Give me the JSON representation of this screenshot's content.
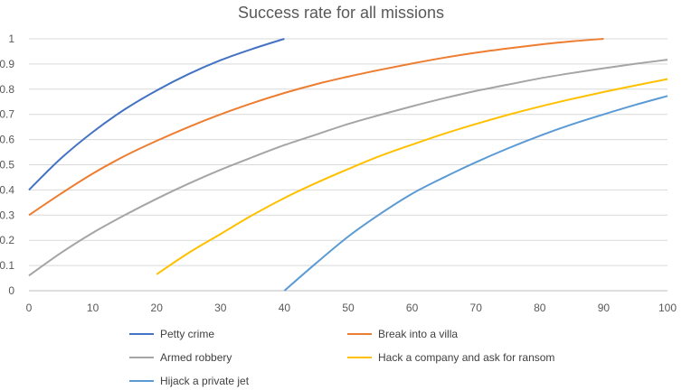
{
  "chart_data": {
    "type": "line",
    "title": "Success rate for all missions",
    "xlabel": "",
    "ylabel": "",
    "xlim": [
      0,
      100
    ],
    "ylim": [
      0,
      1
    ],
    "x_ticks": [
      0,
      10,
      20,
      30,
      40,
      50,
      60,
      70,
      80,
      90,
      100
    ],
    "y_ticks": [
      0,
      0.1,
      0.2,
      0.3,
      0.4,
      0.5,
      0.6,
      0.7,
      0.8,
      0.9,
      1
    ],
    "grid": "horizontal",
    "legend_position": "bottom",
    "x": [
      0,
      5,
      10,
      15,
      20,
      25,
      30,
      35,
      40,
      45,
      50,
      55,
      60,
      65,
      70,
      75,
      80,
      85,
      90,
      95,
      100
    ],
    "series": [
      {
        "name": "Petty crime",
        "color": "#4472C4",
        "values": [
          0.4,
          0.525,
          0.63,
          0.72,
          0.795,
          0.86,
          0.915,
          0.96,
          1.0,
          null,
          null,
          null,
          null,
          null,
          null,
          null,
          null,
          null,
          null,
          null,
          null
        ]
      },
      {
        "name": "Break into a villa",
        "color": "#ED7D31",
        "values": [
          0.3,
          0.385,
          0.465,
          0.535,
          0.595,
          0.65,
          0.7,
          0.745,
          0.785,
          0.82,
          0.85,
          0.877,
          0.902,
          0.925,
          0.945,
          0.962,
          0.977,
          0.99,
          1.0,
          null,
          null
        ]
      },
      {
        "name": "Armed robbery",
        "color": "#A5A5A5",
        "values": [
          0.06,
          0.15,
          0.23,
          0.3,
          0.365,
          0.425,
          0.48,
          0.53,
          0.578,
          0.62,
          0.662,
          0.698,
          0.732,
          0.764,
          0.793,
          0.818,
          0.843,
          0.864,
          0.883,
          0.901,
          0.917
        ]
      },
      {
        "name": "Hack a company and ask for ransom",
        "color": "#FFC000",
        "values": [
          null,
          null,
          null,
          null,
          0.065,
          0.15,
          0.225,
          0.3,
          0.368,
          0.428,
          0.483,
          0.535,
          0.58,
          0.623,
          0.662,
          0.698,
          0.731,
          0.761,
          0.789,
          0.815,
          0.84
        ]
      },
      {
        "name": "Hijack a private jet",
        "color": "#5B9BD5",
        "values": [
          null,
          null,
          null,
          null,
          null,
          null,
          null,
          null,
          0.0,
          0.11,
          0.215,
          0.305,
          0.385,
          0.45,
          0.51,
          0.565,
          0.615,
          0.66,
          0.7,
          0.738,
          0.773
        ]
      }
    ]
  }
}
